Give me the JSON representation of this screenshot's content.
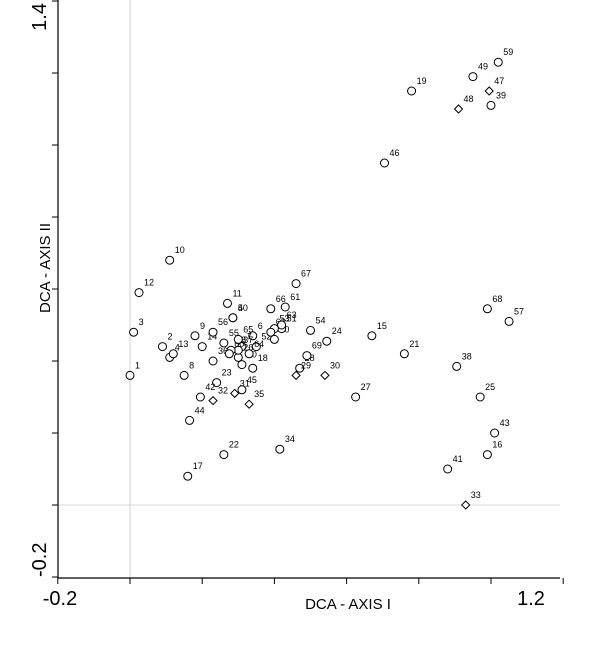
{
  "chart_data": {
    "type": "scatter",
    "xlabel": "DCA - AXIS I",
    "ylabel": "DCA - AXIS II",
    "xlim": [
      -0.2,
      1.2
    ],
    "ylim": [
      -0.2,
      1.4
    ],
    "x_tick_labels": [
      "-0.2",
      "1.2"
    ],
    "y_tick_labels": [
      "-0.2",
      "1.4"
    ],
    "reference_lines": {
      "x": 0.0,
      "y": 0.0
    },
    "grid": false,
    "marker_kinds": [
      "circle",
      "diamond"
    ],
    "points": [
      {
        "label": "1",
        "x": 0.0,
        "y": 0.36,
        "marker": "circle"
      },
      {
        "label": "2",
        "x": 0.09,
        "y": 0.44,
        "marker": "circle"
      },
      {
        "label": "3",
        "x": 0.01,
        "y": 0.48,
        "marker": "circle"
      },
      {
        "label": "4",
        "x": 0.11,
        "y": 0.41,
        "marker": "circle"
      },
      {
        "label": "5",
        "x": 0.285,
        "y": 0.52,
        "marker": "circle"
      },
      {
        "label": "6",
        "x": 0.34,
        "y": 0.47,
        "marker": "circle"
      },
      {
        "label": "7",
        "x": 0.31,
        "y": 0.44,
        "marker": "circle"
      },
      {
        "label": "8",
        "x": 0.15,
        "y": 0.36,
        "marker": "circle"
      },
      {
        "label": "9",
        "x": 0.18,
        "y": 0.47,
        "marker": "circle"
      },
      {
        "label": "10",
        "x": 0.11,
        "y": 0.68,
        "marker": "circle"
      },
      {
        "label": "11",
        "x": 0.27,
        "y": 0.56,
        "marker": "circle"
      },
      {
        "label": "12",
        "x": 0.025,
        "y": 0.59,
        "marker": "circle"
      },
      {
        "label": "13",
        "x": 0.12,
        "y": 0.42,
        "marker": "circle"
      },
      {
        "label": "14",
        "x": 0.2,
        "y": 0.44,
        "marker": "circle"
      },
      {
        "label": "15",
        "x": 0.67,
        "y": 0.47,
        "marker": "circle"
      },
      {
        "label": "16",
        "x": 0.99,
        "y": 0.14,
        "marker": "circle"
      },
      {
        "label": "17",
        "x": 0.16,
        "y": 0.08,
        "marker": "circle"
      },
      {
        "label": "18",
        "x": 0.34,
        "y": 0.38,
        "marker": "circle"
      },
      {
        "label": "19",
        "x": 0.78,
        "y": 1.15,
        "marker": "circle"
      },
      {
        "label": "20",
        "x": 0.31,
        "y": 0.39,
        "marker": "circle"
      },
      {
        "label": "21",
        "x": 0.76,
        "y": 0.42,
        "marker": "circle"
      },
      {
        "label": "22",
        "x": 0.26,
        "y": 0.14,
        "marker": "circle"
      },
      {
        "label": "23",
        "x": 0.24,
        "y": 0.34,
        "marker": "circle"
      },
      {
        "label": "24",
        "x": 0.545,
        "y": 0.455,
        "marker": "circle"
      },
      {
        "label": "25",
        "x": 0.97,
        "y": 0.3,
        "marker": "circle"
      },
      {
        "label": "26",
        "x": 0.3,
        "y": 0.41,
        "marker": "circle"
      },
      {
        "label": "27",
        "x": 0.625,
        "y": 0.3,
        "marker": "circle"
      },
      {
        "label": "28",
        "x": 0.47,
        "y": 0.38,
        "marker": "circle"
      },
      {
        "label": "29",
        "x": 0.46,
        "y": 0.36,
        "marker": "diamond"
      },
      {
        "label": "30",
        "x": 0.54,
        "y": 0.36,
        "marker": "diamond"
      },
      {
        "label": "31",
        "x": 0.29,
        "y": 0.31,
        "marker": "diamond"
      },
      {
        "label": "32",
        "x": 0.23,
        "y": 0.29,
        "marker": "diamond"
      },
      {
        "label": "33",
        "x": 0.93,
        "y": 0.0,
        "marker": "diamond"
      },
      {
        "label": "34",
        "x": 0.415,
        "y": 0.155,
        "marker": "circle"
      },
      {
        "label": "35",
        "x": 0.33,
        "y": 0.28,
        "marker": "diamond"
      },
      {
        "label": "36",
        "x": 0.23,
        "y": 0.4,
        "marker": "circle"
      },
      {
        "label": "37",
        "x": 0.3,
        "y": 0.43,
        "marker": "circle"
      },
      {
        "label": "38",
        "x": 0.905,
        "y": 0.385,
        "marker": "circle"
      },
      {
        "label": "39",
        "x": 1.0,
        "y": 1.11,
        "marker": "circle"
      },
      {
        "label": "40",
        "x": 0.285,
        "y": 0.52,
        "marker": "circle"
      },
      {
        "label": "41",
        "x": 0.88,
        "y": 0.1,
        "marker": "circle"
      },
      {
        "label": "42",
        "x": 0.195,
        "y": 0.3,
        "marker": "circle"
      },
      {
        "label": "43",
        "x": 1.01,
        "y": 0.2,
        "marker": "circle"
      },
      {
        "label": "44",
        "x": 0.165,
        "y": 0.235,
        "marker": "circle"
      },
      {
        "label": "45",
        "x": 0.31,
        "y": 0.32,
        "marker": "circle"
      },
      {
        "label": "46",
        "x": 0.705,
        "y": 0.95,
        "marker": "circle"
      },
      {
        "label": "47",
        "x": 0.995,
        "y": 1.15,
        "marker": "diamond"
      },
      {
        "label": "48",
        "x": 0.91,
        "y": 1.1,
        "marker": "diamond"
      },
      {
        "label": "49",
        "x": 0.95,
        "y": 1.19,
        "marker": "circle"
      },
      {
        "label": "50",
        "x": 0.4,
        "y": 0.46,
        "marker": "circle"
      },
      {
        "label": "51",
        "x": 0.42,
        "y": 0.49,
        "marker": "circle"
      },
      {
        "label": "52",
        "x": 0.35,
        "y": 0.44,
        "marker": "circle"
      },
      {
        "label": "53",
        "x": 0.4,
        "y": 0.49,
        "marker": "circle"
      },
      {
        "label": "54",
        "x": 0.5,
        "y": 0.485,
        "marker": "circle"
      },
      {
        "label": "55",
        "x": 0.26,
        "y": 0.45,
        "marker": "circle"
      },
      {
        "label": "56",
        "x": 0.23,
        "y": 0.48,
        "marker": "circle"
      },
      {
        "label": "57",
        "x": 1.05,
        "y": 0.51,
        "marker": "circle"
      },
      {
        "label": "58",
        "x": 0.28,
        "y": 0.43,
        "marker": "circle"
      },
      {
        "label": "59",
        "x": 1.02,
        "y": 1.23,
        "marker": "circle"
      },
      {
        "label": "60",
        "x": 0.275,
        "y": 0.42,
        "marker": "circle"
      },
      {
        "label": "61",
        "x": 0.43,
        "y": 0.55,
        "marker": "circle"
      },
      {
        "label": "62",
        "x": 0.39,
        "y": 0.48,
        "marker": "circle"
      },
      {
        "label": "63",
        "x": 0.42,
        "y": 0.5,
        "marker": "circle"
      },
      {
        "label": "64",
        "x": 0.33,
        "y": 0.42,
        "marker": "circle"
      },
      {
        "label": "65",
        "x": 0.3,
        "y": 0.46,
        "marker": "circle"
      },
      {
        "label": "66",
        "x": 0.39,
        "y": 0.545,
        "marker": "circle"
      },
      {
        "label": "67",
        "x": 0.46,
        "y": 0.615,
        "marker": "circle"
      },
      {
        "label": "68",
        "x": 0.99,
        "y": 0.545,
        "marker": "circle"
      },
      {
        "label": "69",
        "x": 0.49,
        "y": 0.415,
        "marker": "circle"
      }
    ]
  }
}
